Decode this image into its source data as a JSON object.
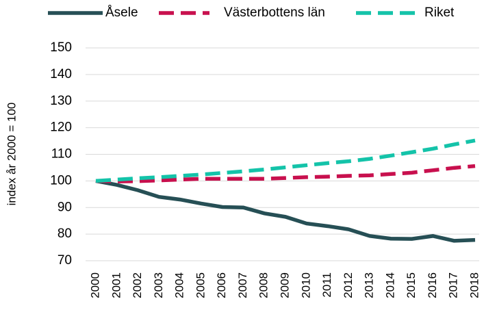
{
  "chart_data": {
    "type": "line",
    "y_label": "index år 2000 = 100",
    "categories": [
      "2000",
      "2001",
      "2002",
      "2003",
      "2004",
      "2005",
      "2006",
      "2007",
      "2008",
      "2009",
      "2010",
      "2011",
      "2012",
      "2013",
      "2014",
      "2015",
      "2016",
      "2017",
      "2018"
    ],
    "series": [
      {
        "name": "Åsele",
        "color": "#264f55",
        "line_style": "solid",
        "values": [
          100,
          98.5,
          96.5,
          94,
          93,
          91.5,
          90.2,
          90,
          87.8,
          86.5,
          84,
          83,
          81.8,
          79.3,
          78.3,
          78.2,
          79.3,
          77.5,
          77.8
        ]
      },
      {
        "name": "Västerbottens län",
        "color": "#c8104e",
        "line_style": "dashed",
        "values": [
          100,
          99.8,
          99.9,
          100.2,
          100.5,
          100.8,
          100.8,
          100.8,
          100.8,
          101.1,
          101.4,
          101.6,
          101.9,
          102.1,
          102.6,
          103.1,
          104,
          104.9,
          105.6
        ]
      },
      {
        "name": "Riket",
        "color": "#14c3a9",
        "line_style": "dashed",
        "values": [
          100,
          100.5,
          101,
          101.4,
          101.9,
          102.4,
          103,
          103.6,
          104.3,
          105.1,
          105.9,
          106.7,
          107.4,
          108.3,
          109.5,
          110.8,
          112.1,
          113.7,
          115.2
        ]
      }
    ],
    "ylim": [
      70,
      150
    ],
    "yticks": [
      70,
      80,
      90,
      100,
      110,
      120,
      130,
      140,
      150
    ],
    "grid": true,
    "legend": "top"
  }
}
